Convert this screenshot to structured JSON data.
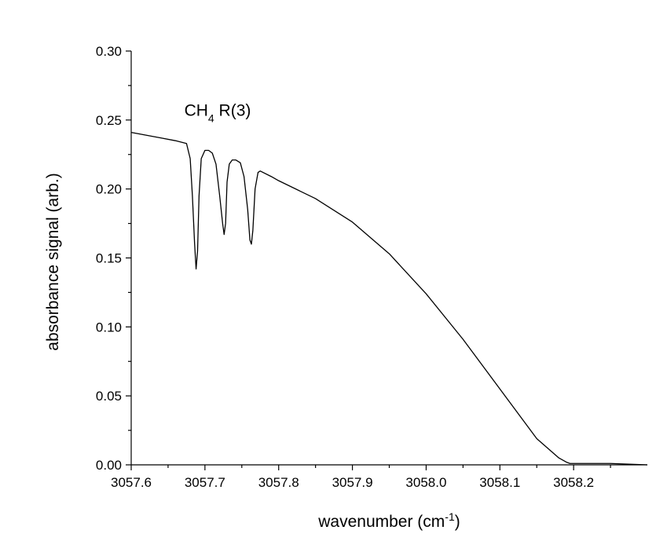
{
  "chart_data": {
    "type": "line",
    "title": "",
    "xlabel": "wavenumber (cm",
    "xlabel_sup": "-1",
    "xlabel_close": ")",
    "ylabel": "absorbance signal (arb.)",
    "xlim": [
      3057.6,
      3058.3
    ],
    "ylim": [
      0,
      0.3
    ],
    "x_ticks": [
      3057.6,
      3057.7,
      3057.8,
      3057.9,
      3058.0,
      3058.1,
      3058.2
    ],
    "x_tick_labels": [
      "3057.6",
      "3057.7",
      "3057.8",
      "3057.9",
      "3058.0",
      "3058.1",
      "3058.2"
    ],
    "y_ticks": [
      0.0,
      0.05,
      0.1,
      0.15,
      0.2,
      0.25,
      0.3
    ],
    "y_tick_labels": [
      "0.00",
      "0.05",
      "0.10",
      "0.15",
      "0.20",
      "0.25",
      "0.30"
    ],
    "grid": false,
    "annotation": {
      "main": "CH",
      "sub": "4",
      "rest": " R(3)",
      "x": 3057.672,
      "y": 0.253
    },
    "series": [
      {
        "color": "#000000",
        "x": [
          3057.6,
          3057.62,
          3057.64,
          3057.66,
          3057.675,
          3057.68,
          3057.683,
          3057.686,
          3057.688,
          3057.69,
          3057.692,
          3057.695,
          3057.7,
          3057.705,
          3057.71,
          3057.715,
          3057.72,
          3057.724,
          3057.726,
          3057.728,
          3057.73,
          3057.733,
          3057.737,
          3057.742,
          3057.748,
          3057.753,
          3057.758,
          3057.761,
          3057.763,
          3057.765,
          3057.768,
          3057.772,
          3057.775,
          3057.79,
          3057.8,
          3057.85,
          3057.9,
          3057.95,
          3058.0,
          3058.05,
          3058.1,
          3058.15,
          3058.18,
          3058.19,
          3058.195,
          3058.2,
          3058.25,
          3058.3
        ],
        "y": [
          0.241,
          0.239,
          0.237,
          0.235,
          0.233,
          0.222,
          0.195,
          0.16,
          0.142,
          0.155,
          0.195,
          0.222,
          0.228,
          0.228,
          0.226,
          0.218,
          0.195,
          0.175,
          0.167,
          0.175,
          0.205,
          0.218,
          0.221,
          0.221,
          0.219,
          0.209,
          0.185,
          0.163,
          0.16,
          0.17,
          0.2,
          0.212,
          0.213,
          0.209,
          0.206,
          0.193,
          0.176,
          0.153,
          0.124,
          0.091,
          0.055,
          0.019,
          0.005,
          0.002,
          0.001,
          0.001,
          0.001,
          0.0
        ]
      }
    ]
  }
}
